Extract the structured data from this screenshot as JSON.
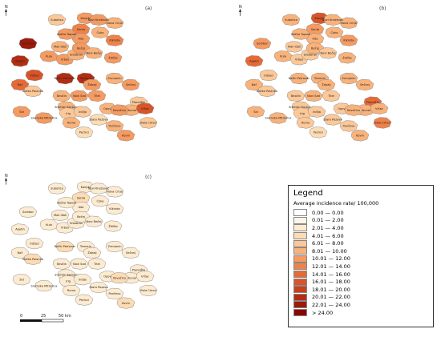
{
  "panels": [
    {
      "label": "(a)",
      "regions": [
        {
          "name": "Sombor",
          "level": 12
        },
        {
          "name": "Subotica",
          "level": 4
        },
        {
          "name": "Kanjiža",
          "level": 6
        },
        {
          "name": "Senta",
          "level": 7
        },
        {
          "name": "Čoka",
          "level": 5
        },
        {
          "name": "Ada",
          "level": 6
        },
        {
          "name": "Bačka Topola",
          "level": 6
        },
        {
          "name": "Mali Iđoš",
          "level": 5
        },
        {
          "name": "Kikinda",
          "level": 7
        },
        {
          "name": "Kula",
          "level": 6
        },
        {
          "name": "Apatin",
          "level": 11
        },
        {
          "name": "Odžaci",
          "level": 9
        },
        {
          "name": "Vrbas",
          "level": 6
        },
        {
          "name": "Srbobran",
          "level": 5
        },
        {
          "name": "Bečej",
          "level": 6
        },
        {
          "name": "Novi Bečej",
          "level": 5
        },
        {
          "name": "Žitište",
          "level": 6
        },
        {
          "name": "Bač",
          "level": 8
        },
        {
          "name": "Bačka Palanka",
          "level": 4
        },
        {
          "name": "Bački Petrovac",
          "level": 11
        },
        {
          "name": "Temerin",
          "level": 11
        },
        {
          "name": "Žabalj",
          "level": 6
        },
        {
          "name": "Zrenjanin",
          "level": 5
        },
        {
          "name": "Sečanj",
          "level": 6
        },
        {
          "name": "Novi Sad",
          "level": 6
        },
        {
          "name": "Beočin",
          "level": 5
        },
        {
          "name": "Titel",
          "level": 6
        },
        {
          "name": "Plandište",
          "level": 4
        },
        {
          "name": "Šid",
          "level": 6
        },
        {
          "name": "Sremski Karlovci",
          "level": 5
        },
        {
          "name": "Opovo",
          "level": 5
        },
        {
          "name": "Alibunar",
          "level": 5
        },
        {
          "name": "Vršac",
          "level": 9
        },
        {
          "name": "Sremska Mitrovica",
          "level": 6
        },
        {
          "name": "Irig",
          "level": 4
        },
        {
          "name": "Inđija",
          "level": 4
        },
        {
          "name": "Stara Pazova",
          "level": 3
        },
        {
          "name": "Ruma",
          "level": 5
        },
        {
          "name": "Kovačica",
          "level": 6
        },
        {
          "name": "Bela Crkva",
          "level": 4
        },
        {
          "name": "Pančevo",
          "level": 5
        },
        {
          "name": "Pećinci",
          "level": 3
        },
        {
          "name": "Kovin",
          "level": 6
        },
        {
          "name": "Nova Crnja",
          "level": 5
        },
        {
          "name": "Novi Kneževac",
          "level": 6
        }
      ]
    },
    {
      "label": "(b)",
      "regions": [
        {
          "name": "Sombor",
          "level": 6
        },
        {
          "name": "Subotica",
          "level": 5
        },
        {
          "name": "Kanjiža",
          "level": 9
        },
        {
          "name": "Senta",
          "level": 6
        },
        {
          "name": "Čoka",
          "level": 5
        },
        {
          "name": "Ada",
          "level": 5
        },
        {
          "name": "Bačka Topola",
          "level": 5
        },
        {
          "name": "Mali Iđoš",
          "level": 4
        },
        {
          "name": "Kikinda",
          "level": 6
        },
        {
          "name": "Kula",
          "level": 5
        },
        {
          "name": "Apatin",
          "level": 8
        },
        {
          "name": "Odžaci",
          "level": 4
        },
        {
          "name": "Vrbas",
          "level": 4
        },
        {
          "name": "Srbobran",
          "level": 4
        },
        {
          "name": "Bečej",
          "level": 5
        },
        {
          "name": "Novi Bečej",
          "level": 4
        },
        {
          "name": "Žitište",
          "level": 5
        },
        {
          "name": "Bač",
          "level": 5
        },
        {
          "name": "Bačka Palanka",
          "level": 4
        },
        {
          "name": "Bački Petrovac",
          "level": 5
        },
        {
          "name": "Temerin",
          "level": 5
        },
        {
          "name": "Žabalj",
          "level": 5
        },
        {
          "name": "Zrenjanin",
          "level": 5
        },
        {
          "name": "Sečanj",
          "level": 5
        },
        {
          "name": "Novi Sad",
          "level": 5
        },
        {
          "name": "Beočin",
          "level": 4
        },
        {
          "name": "Titel",
          "level": 4
        },
        {
          "name": "Plandište",
          "level": 8
        },
        {
          "name": "Šid",
          "level": 5
        },
        {
          "name": "Sremski Karlovci",
          "level": 4
        },
        {
          "name": "Opovo",
          "level": 4
        },
        {
          "name": "Alibunar",
          "level": 5
        },
        {
          "name": "Vršac",
          "level": 5
        },
        {
          "name": "Sremska Mitrovica",
          "level": 5
        },
        {
          "name": "Irig",
          "level": 4
        },
        {
          "name": "Inđija",
          "level": 4
        },
        {
          "name": "Stara Pazova",
          "level": 4
        },
        {
          "name": "Ruma",
          "level": 4
        },
        {
          "name": "Kovačica",
          "level": 5
        },
        {
          "name": "Bela Crkva",
          "level": 7
        },
        {
          "name": "Pančevo",
          "level": 4
        },
        {
          "name": "Pećinci",
          "level": 3
        },
        {
          "name": "Kovin",
          "level": 5
        },
        {
          "name": "Nova Crnja",
          "level": 5
        },
        {
          "name": "Novi Kneževac",
          "level": 5
        }
      ]
    },
    {
      "label": "(c)",
      "regions": [
        {
          "name": "Sombor",
          "level": 2
        },
        {
          "name": "Subotica",
          "level": 2
        },
        {
          "name": "Kanjiža",
          "level": 2
        },
        {
          "name": "Senta",
          "level": 3
        },
        {
          "name": "Čoka",
          "level": 2
        },
        {
          "name": "Ada",
          "level": 2
        },
        {
          "name": "Bačka Topola",
          "level": 2
        },
        {
          "name": "Mali Iđoš",
          "level": 2
        },
        {
          "name": "Kikinda",
          "level": 2
        },
        {
          "name": "Kula",
          "level": 2
        },
        {
          "name": "Apatin",
          "level": 2
        },
        {
          "name": "Odžaci",
          "level": 2
        },
        {
          "name": "Vrbas",
          "level": 2
        },
        {
          "name": "Srbobran",
          "level": 2
        },
        {
          "name": "Bečej",
          "level": 2
        },
        {
          "name": "Novi Bečej",
          "level": 2
        },
        {
          "name": "Žitište",
          "level": 2
        },
        {
          "name": "Bač",
          "level": 2
        },
        {
          "name": "Bačka Palanka",
          "level": 3
        },
        {
          "name": "Bački Petrovac",
          "level": 3
        },
        {
          "name": "Temerin",
          "level": 2
        },
        {
          "name": "Žabalj",
          "level": 2
        },
        {
          "name": "Zrenjanin",
          "level": 2
        },
        {
          "name": "Sečanj",
          "level": 2
        },
        {
          "name": "Novi Sad",
          "level": 2
        },
        {
          "name": "Beočin",
          "level": 2
        },
        {
          "name": "Titel",
          "level": 2
        },
        {
          "name": "Plandište",
          "level": 2
        },
        {
          "name": "Šid",
          "level": 2
        },
        {
          "name": "Sremski Karlovci",
          "level": 2
        },
        {
          "name": "Opovo",
          "level": 2
        },
        {
          "name": "Alibunar",
          "level": 2
        },
        {
          "name": "Vršac",
          "level": 2
        },
        {
          "name": "Sremska Mitrovica",
          "level": 2
        },
        {
          "name": "Irig",
          "level": 2
        },
        {
          "name": "Inđija",
          "level": 2
        },
        {
          "name": "Stara Pazova",
          "level": 2
        },
        {
          "name": "Ruma",
          "level": 2
        },
        {
          "name": "Kovačica",
          "level": 3
        },
        {
          "name": "Bela Crkva",
          "level": 2
        },
        {
          "name": "Pančevo",
          "level": 2
        },
        {
          "name": "Pećinci",
          "level": 2
        },
        {
          "name": "Kovin",
          "level": 3
        },
        {
          "name": "Nova Crnja",
          "level": 2
        },
        {
          "name": "Novi Kneževac",
          "level": 2
        }
      ]
    }
  ],
  "north_arrow": "N",
  "legend": {
    "title": "Legend",
    "subtitle": "Average incidence rate/ 100,000",
    "classes": [
      {
        "label": "0.00 — 0.00",
        "color": "#ffffff"
      },
      {
        "label": "0.01 — 2.00",
        "color": "#fff5e6"
      },
      {
        "label": "2.01 — 4.00",
        "color": "#fdebd0"
      },
      {
        "label": "4.01 — 6.00",
        "color": "#fddcb4"
      },
      {
        "label": "6.01 — 8.00",
        "color": "#fcc898"
      },
      {
        "label": "8.01 — 10.00",
        "color": "#f9b27a"
      },
      {
        "label": "10.01 — 12.00",
        "color": "#f59a60"
      },
      {
        "label": "12.01 — 14.00",
        "color": "#ef8249"
      },
      {
        "label": "14.01 — 16.00",
        "color": "#e66a36"
      },
      {
        "label": "16.01 — 18.00",
        "color": "#d95428"
      },
      {
        "label": "18.01 — 20.00",
        "color": "#c8401c"
      },
      {
        "label": "20.01 — 22.00",
        "color": "#b42d12"
      },
      {
        "label": "22.01 — 24.00",
        "color": "#9e1a0a"
      },
      {
        "label": "> 24.00",
        "color": "#870803"
      }
    ]
  },
  "scale_bar": {
    "ticks": [
      "0",
      "25",
      "50 km"
    ]
  }
}
